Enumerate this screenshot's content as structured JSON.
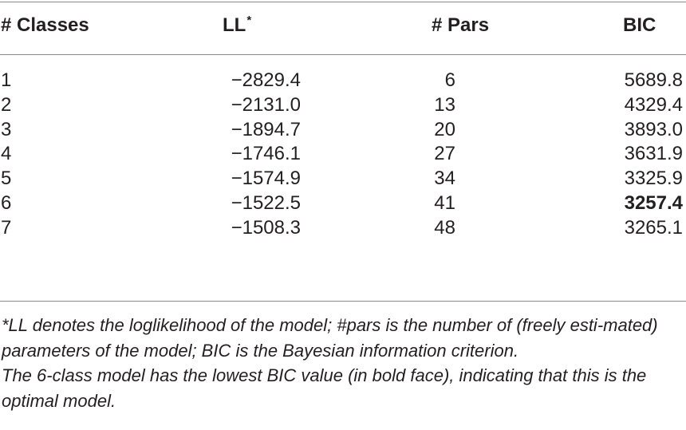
{
  "table": {
    "headers": {
      "classes": "# Classes",
      "ll": "LL",
      "ll_sup": "*",
      "pars": "# Pars",
      "bic": "BIC"
    },
    "rows": [
      {
        "classes": "1",
        "ll": "−2829.4",
        "pars": "6",
        "bic": "5689.8",
        "bold": false
      },
      {
        "classes": "2",
        "ll": "−2131.0",
        "pars": "13",
        "bic": "4329.4",
        "bold": false
      },
      {
        "classes": "3",
        "ll": "−1894.7",
        "pars": "20",
        "bic": "3893.0",
        "bold": false
      },
      {
        "classes": "4",
        "ll": "−1746.1",
        "pars": "27",
        "bic": "3631.9",
        "bold": false
      },
      {
        "classes": "5",
        "ll": "−1574.9",
        "pars": "34",
        "bic": "3325.9",
        "bold": false
      },
      {
        "classes": "6",
        "ll": "−1522.5",
        "pars": "41",
        "bic": "3257.4",
        "bold": true
      },
      {
        "classes": "7",
        "ll": "−1508.3",
        "pars": "48",
        "bic": "3265.1",
        "bold": false
      }
    ]
  },
  "notes": {
    "note1": "*LL denotes the loglikelihood of the model; #pars is the number of (freely esti-mated) parameters of the model; BIC is the Bayesian information criterion.",
    "note2": "The 6-class model has the lowest BIC value (in bold face), indicating that this is the optimal model."
  }
}
